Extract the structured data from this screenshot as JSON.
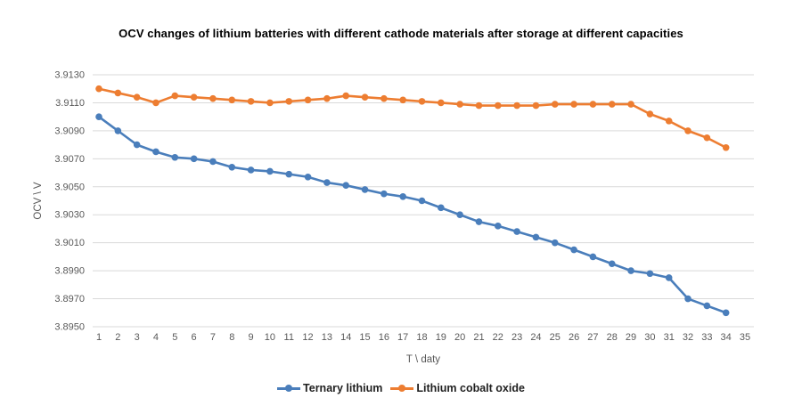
{
  "chart_data": {
    "type": "line",
    "title": "OCV changes of lithium batteries with different cathode materials after storage at different capacities",
    "xlabel": "T \\ daty",
    "ylabel": "OCV \\ V",
    "x": [
      1,
      2,
      3,
      4,
      5,
      6,
      7,
      8,
      9,
      10,
      11,
      12,
      13,
      14,
      15,
      16,
      17,
      18,
      19,
      20,
      21,
      22,
      23,
      24,
      25,
      26,
      27,
      28,
      29,
      30,
      31,
      32,
      33,
      34
    ],
    "x_ticks": [
      1,
      2,
      3,
      4,
      5,
      6,
      7,
      8,
      9,
      10,
      11,
      12,
      13,
      14,
      15,
      16,
      17,
      18,
      19,
      20,
      21,
      22,
      23,
      24,
      25,
      26,
      27,
      28,
      29,
      30,
      31,
      32,
      33,
      34,
      35
    ],
    "ylim": [
      3.895,
      3.913
    ],
    "y_tick_step": 0.002,
    "y_tick_labels": [
      "3.9130",
      "3.9110",
      "3.9090",
      "3.9070",
      "3.9050",
      "3.9030",
      "3.9010",
      "3.8990",
      "3.8970",
      "3.8950"
    ],
    "grid": "horizontal",
    "gridline_color": "#D9D9D9",
    "tick_label_color": "#595959",
    "legend_position": "bottom",
    "series": [
      {
        "name": "Ternary lithium",
        "color": "#4A7EBB",
        "values": [
          3.91,
          3.909,
          3.908,
          3.9075,
          3.9071,
          3.907,
          3.9068,
          3.9064,
          3.9062,
          3.9061,
          3.9059,
          3.9057,
          3.9053,
          3.9051,
          3.9048,
          3.9045,
          3.9043,
          3.904,
          3.9035,
          3.903,
          3.9025,
          3.9022,
          3.9018,
          3.9014,
          3.901,
          3.9005,
          3.9,
          3.8995,
          3.899,
          3.8988,
          3.8985,
          3.897,
          3.8965,
          3.896
        ]
      },
      {
        "name": "Lithium cobalt oxide",
        "color": "#ED7D31",
        "values": [
          3.912,
          3.9117,
          3.9114,
          3.911,
          3.9115,
          3.9114,
          3.9113,
          3.9112,
          3.9111,
          3.911,
          3.9111,
          3.9112,
          3.9113,
          3.9115,
          3.9114,
          3.9113,
          3.9112,
          3.9111,
          3.911,
          3.9109,
          3.9108,
          3.9108,
          3.9108,
          3.9108,
          3.9109,
          3.9109,
          3.9109,
          3.9109,
          3.9109,
          3.9102,
          3.9097,
          3.909,
          3.9085,
          3.9078
        ]
      }
    ]
  }
}
